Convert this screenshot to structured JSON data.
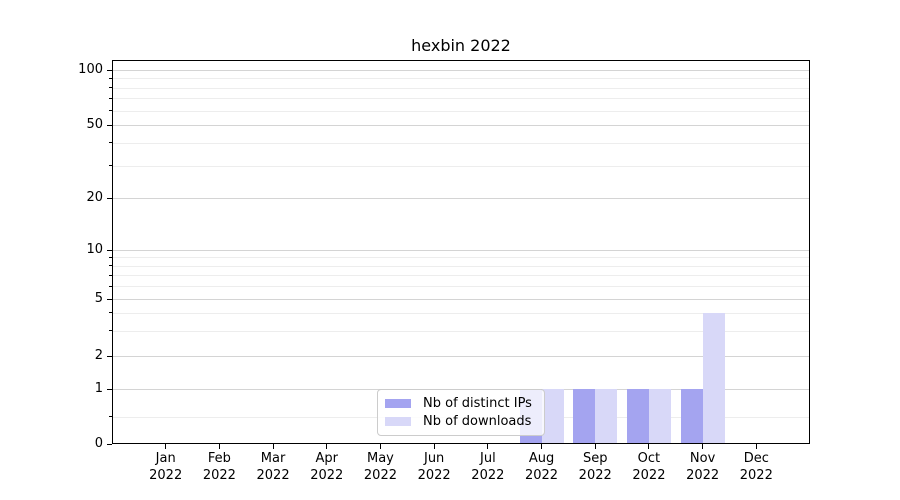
{
  "chart_data": {
    "type": "bar",
    "title": "hexbin 2022",
    "year_label": "2022",
    "categories": [
      "Jan",
      "Feb",
      "Mar",
      "Apr",
      "May",
      "Jun",
      "Jul",
      "Aug",
      "Sep",
      "Oct",
      "Nov",
      "Dec"
    ],
    "series": [
      {
        "name": "Nb of distinct IPs",
        "color": "#a4a4f0",
        "values": [
          0,
          0,
          0,
          0,
          0,
          0,
          0,
          1,
          1,
          1,
          1,
          0
        ]
      },
      {
        "name": "Nb of downloads",
        "color": "#d8d8f8",
        "values": [
          0,
          0,
          0,
          0,
          0,
          0,
          0,
          1,
          1,
          1,
          4,
          0
        ]
      }
    ],
    "yscale": "symlog",
    "y_major_ticks": [
      0,
      1,
      2,
      5,
      10,
      20,
      50,
      100
    ],
    "y_minor_ticks": [
      0.5,
      3,
      4,
      6,
      7,
      8,
      9,
      30,
      40,
      60,
      70,
      80,
      90
    ],
    "ylim": [
      0,
      140
    ],
    "xlabel": "",
    "ylabel": "",
    "grid": true,
    "legend_position": "inside-lower-center"
  }
}
